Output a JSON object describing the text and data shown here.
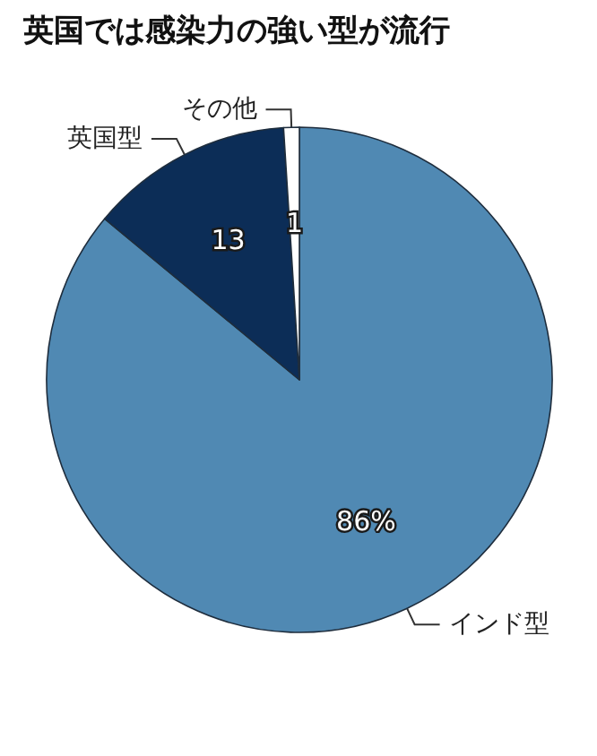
{
  "chart_data": {
    "type": "pie",
    "title": "英国では感染力の強い型が流行",
    "categories": [
      "インド型",
      "英国型",
      "その他"
    ],
    "values": [
      86,
      13,
      1
    ],
    "value_labels": [
      "86%",
      "13",
      "1"
    ],
    "colors": [
      "#5089b3",
      "#0c2d57",
      "#ffffff"
    ],
    "legend": false
  }
}
